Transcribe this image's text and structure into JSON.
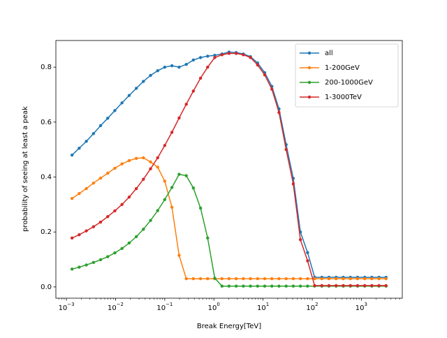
{
  "chart_data": {
    "type": "line",
    "xlabel": "Break Energy[TeV]",
    "ylabel": "probability of seeing at least a peak",
    "x": [
      0.0013,
      0.00182,
      0.00254,
      0.00355,
      0.00495,
      0.00692,
      0.00966,
      0.0135,
      0.0189,
      0.0264,
      0.0368,
      0.0514,
      0.0718,
      0.1,
      0.14,
      0.196,
      0.274,
      0.382,
      0.535,
      0.746,
      1.04,
      1.46,
      2.03,
      2.84,
      3.97,
      5.54,
      7.75,
      10.8,
      15.1,
      21.1,
      29.5,
      41.2,
      57.5,
      80.5,
      112,
      157,
      219,
      306,
      428,
      598,
      836,
      1170,
      1630,
      2280,
      3180
    ],
    "series": [
      {
        "name": "all",
        "color": "#1f77b4",
        "values": [
          0.48,
          0.505,
          0.53,
          0.558,
          0.587,
          0.614,
          0.642,
          0.67,
          0.697,
          0.723,
          0.748,
          0.77,
          0.787,
          0.8,
          0.805,
          0.8,
          0.81,
          0.826,
          0.835,
          0.84,
          0.843,
          0.848,
          0.855,
          0.853,
          0.848,
          0.838,
          0.815,
          0.78,
          0.73,
          0.648,
          0.518,
          0.395,
          0.2,
          0.125,
          0.035,
          0.035,
          0.035,
          0.035,
          0.035,
          0.035,
          0.035,
          0.035,
          0.035,
          0.035,
          0.035
        ]
      },
      {
        "name": "1-200GeV",
        "color": "#ff7f0e",
        "values": [
          0.322,
          0.34,
          0.358,
          0.378,
          0.396,
          0.414,
          0.432,
          0.448,
          0.46,
          0.468,
          0.47,
          0.455,
          0.436,
          0.385,
          0.29,
          0.115,
          0.03,
          0.03,
          0.03,
          0.03,
          0.03,
          0.03,
          0.03,
          0.03,
          0.03,
          0.03,
          0.03,
          0.03,
          0.03,
          0.03,
          0.03,
          0.03,
          0.03,
          0.03,
          0.03,
          0.03,
          0.03,
          0.03,
          0.03,
          0.03,
          0.03,
          0.03,
          0.03,
          0.03,
          0.03
        ]
      },
      {
        "name": "200-1000GeV",
        "color": "#2ca02c",
        "values": [
          0.065,
          0.072,
          0.08,
          0.089,
          0.099,
          0.11,
          0.124,
          0.14,
          0.16,
          0.183,
          0.21,
          0.242,
          0.278,
          0.318,
          0.362,
          0.41,
          0.405,
          0.36,
          0.287,
          0.178,
          0.032,
          0.003,
          0.003,
          0.003,
          0.003,
          0.003,
          0.003,
          0.003,
          0.003,
          0.003,
          0.003,
          0.003,
          0.003,
          0.003,
          0.003,
          0.003,
          0.003,
          0.003,
          0.003,
          0.003,
          0.003,
          0.003,
          0.003,
          0.003,
          0.003
        ]
      },
      {
        "name": "1-3000TeV",
        "color": "#d62728",
        "values": [
          0.178,
          0.19,
          0.204,
          0.219,
          0.236,
          0.256,
          0.277,
          0.3,
          0.327,
          0.358,
          0.392,
          0.43,
          0.47,
          0.515,
          0.563,
          0.615,
          0.665,
          0.713,
          0.76,
          0.8,
          0.835,
          0.845,
          0.85,
          0.85,
          0.845,
          0.835,
          0.808,
          0.772,
          0.72,
          0.635,
          0.5,
          0.375,
          0.172,
          0.095,
          0.005,
          0.005,
          0.005,
          0.005,
          0.005,
          0.005,
          0.005,
          0.005,
          0.005,
          0.005,
          0.005
        ]
      }
    ],
    "xscale": "log",
    "xlim": [
      0.00061,
      6800
    ],
    "xticks": [
      {
        "value": 0.001,
        "label": "10−3"
      },
      {
        "value": 0.01,
        "label": "10−2"
      },
      {
        "value": 0.1,
        "label": "10−1"
      },
      {
        "value": 1,
        "label": "100"
      },
      {
        "value": 10,
        "label": "101"
      },
      {
        "value": 100,
        "label": "102"
      },
      {
        "value": 1000,
        "label": "103"
      }
    ],
    "ylim": [
      -0.041,
      0.897
    ],
    "yticks": [
      {
        "value": 0,
        "label": "0.0"
      },
      0.2,
      0.4,
      0.6,
      0.8
    ],
    "grid": false,
    "legend": "upper right"
  }
}
